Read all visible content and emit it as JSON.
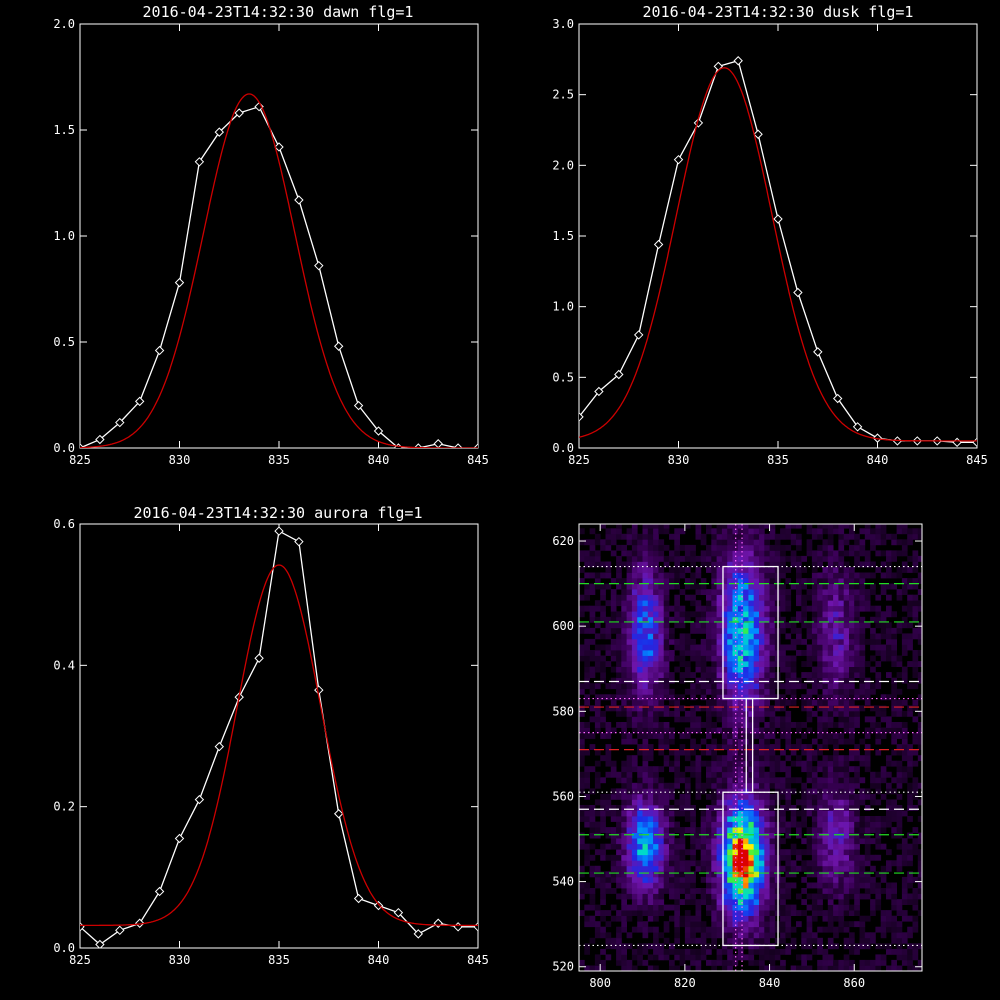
{
  "chart_data": [
    {
      "type": "line",
      "panel": "top-left",
      "title": "2016-04-23T14:32:30 dawn flg=1",
      "xlabel": "",
      "ylabel": "",
      "xlim": [
        825,
        845
      ],
      "ylim": [
        0,
        2.0
      ],
      "xticks": [
        825,
        830,
        835,
        840,
        845
      ],
      "yticks": [
        0.0,
        0.5,
        1.0,
        1.5,
        2.0
      ],
      "series": [
        {
          "color": "#ffffff",
          "markers": "diamond",
          "x": [
            825,
            826,
            827,
            828,
            829,
            830,
            831,
            832,
            833,
            834,
            835,
            836,
            837,
            838,
            839,
            840,
            841,
            842,
            843,
            844,
            845
          ],
          "y": [
            0.0,
            0.04,
            0.12,
            0.22,
            0.46,
            0.78,
            1.35,
            1.49,
            1.58,
            1.61,
            1.42,
            1.17,
            0.86,
            0.48,
            0.2,
            0.08,
            0.0,
            0.0,
            0.02,
            0.0,
            0.0
          ]
        },
        {
          "color": "#cc0000",
          "fit": "gaussian",
          "amp": 1.67,
          "center": 833.5,
          "sigma": 2.3,
          "offset": 0.0
        }
      ]
    },
    {
      "type": "line",
      "panel": "top-right",
      "title": "2016-04-23T14:32:30 dusk flg=1",
      "xlabel": "",
      "ylabel": "",
      "xlim": [
        825,
        845
      ],
      "ylim": [
        0,
        3.0
      ],
      "xticks": [
        825,
        830,
        835,
        840,
        845
      ],
      "yticks": [
        0.0,
        0.5,
        1.0,
        1.5,
        2.0,
        2.5,
        3.0
      ],
      "series": [
        {
          "color": "#ffffff",
          "markers": "diamond",
          "x": [
            825,
            826,
            827,
            828,
            829,
            830,
            831,
            832,
            833,
            834,
            835,
            836,
            837,
            838,
            839,
            840,
            841,
            842,
            843,
            844,
            845
          ],
          "y": [
            0.22,
            0.4,
            0.52,
            0.8,
            1.44,
            2.04,
            2.3,
            2.7,
            2.74,
            2.22,
            1.62,
            1.1,
            0.68,
            0.35,
            0.15,
            0.07,
            0.05,
            0.05,
            0.05,
            0.04,
            0.04
          ]
        },
        {
          "color": "#cc0000",
          "fit": "gaussian",
          "amp": 2.64,
          "center": 832.3,
          "sigma": 2.4,
          "offset": 0.05
        }
      ]
    },
    {
      "type": "line",
      "panel": "bottom-left",
      "title": "2016-04-23T14:32:30 aurora flg=1",
      "xlabel": "",
      "ylabel": "",
      "xlim": [
        825,
        845
      ],
      "ylim": [
        0,
        0.6
      ],
      "xticks": [
        825,
        830,
        835,
        840,
        845
      ],
      "yticks": [
        0.0,
        0.2,
        0.4,
        0.6
      ],
      "series": [
        {
          "color": "#ffffff",
          "markers": "diamond",
          "x": [
            825,
            826,
            827,
            828,
            829,
            830,
            831,
            832,
            833,
            834,
            835,
            836,
            837,
            838,
            839,
            840,
            841,
            842,
            843,
            844,
            845
          ],
          "y": [
            0.03,
            0.005,
            0.025,
            0.035,
            0.08,
            0.155,
            0.21,
            0.285,
            0.355,
            0.41,
            0.59,
            0.575,
            0.365,
            0.19,
            0.07,
            0.06,
            0.05,
            0.02,
            0.035,
            0.03,
            0.03
          ]
        },
        {
          "color": "#cc0000",
          "fit": "gaussian",
          "amp": 0.51,
          "center": 835.0,
          "sigma": 2.1,
          "offset": 0.032
        }
      ]
    },
    {
      "type": "heatmap",
      "panel": "bottom-right",
      "title": "",
      "xlabel": "",
      "ylabel": "",
      "xlim": [
        795,
        876
      ],
      "ylim": [
        519,
        624
      ],
      "xticks": [
        800,
        820,
        840,
        860
      ],
      "yticks": [
        520,
        540,
        560,
        580,
        600,
        620
      ],
      "colormap": "rainbow-on-black",
      "blobs": [
        {
          "x": 810,
          "y": 548,
          "sx": 3.0,
          "sy": 7,
          "peak": 0.55
        },
        {
          "x": 810,
          "y": 598,
          "sx": 2.8,
          "sy": 10,
          "peak": 0.42
        },
        {
          "x": 833,
          "y": 545,
          "sx": 3.5,
          "sy": 9,
          "peak": 1.0
        },
        {
          "x": 833,
          "y": 598,
          "sx": 3.5,
          "sy": 12,
          "peak": 0.6
        },
        {
          "x": 855,
          "y": 550,
          "sx": 3.0,
          "sy": 8,
          "peak": 0.25
        },
        {
          "x": 855,
          "y": 598,
          "sx": 3.0,
          "sy": 10,
          "peak": 0.22
        }
      ],
      "overlays": {
        "box_color": "#ffffff",
        "boxes": [
          {
            "x0": 829,
            "x1": 842,
            "y0": 583,
            "y1": 614
          },
          {
            "x0": 829,
            "x1": 842,
            "y0": 525,
            "y1": 561
          }
        ],
        "connector": {
          "x0": 834.5,
          "x1": 836,
          "y0": 561,
          "y1": 583
        },
        "vertical_dotted": {
          "x": [
            832,
            833.5
          ],
          "color": "#ff66ff"
        },
        "dotted_white_y": [
          614,
          561,
          525
        ],
        "dotted_magenta_y": [
          583,
          575
        ],
        "dashed_green_y": [
          610,
          601,
          551,
          542
        ],
        "dashed_white_y": [
          587,
          557
        ],
        "dashed_red_y": [
          581,
          571
        ]
      }
    }
  ]
}
